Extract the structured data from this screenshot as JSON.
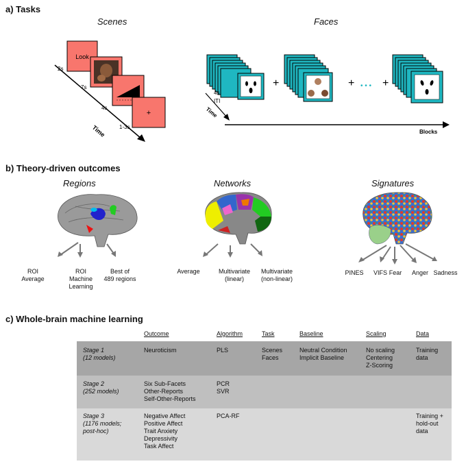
{
  "sections": {
    "a": "a) Tasks",
    "b": "b) Theory-driven outcomes",
    "c": "c) Whole-brain machine learning"
  },
  "tasks": {
    "scenes_title": "Scenes",
    "faces_title": "Faces",
    "look": "Look",
    "plus": "+",
    "scene_times": [
      "2s",
      "7s",
      "4s",
      "1-3s"
    ],
    "time_label": "Time",
    "faces_timing_1": "4s",
    "faces_timing_2": "ITI",
    "blocks_label": "Blocks",
    "ellipsis": "• • •"
  },
  "theory": {
    "regions_title": "Regions",
    "networks_title": "Networks",
    "signatures_title": "Signatures",
    "regions_items": [
      "ROI\nAverage",
      "ROI\nMachine\nLearning",
      "Best of\n489 regions"
    ],
    "networks_items": [
      "Average",
      "Multivariate\n(linear)",
      "Multivariate\n(non-linear)"
    ],
    "signature_items": [
      "PINES",
      "VIFS",
      "Fear",
      "Anger",
      "Sadness"
    ]
  },
  "ml_table": {
    "headers": [
      "Outcome",
      "Algorithm",
      "Task",
      "Baseline",
      "Scaling",
      "Data"
    ],
    "rows": [
      {
        "stage": "Stage 1\n(12 models)",
        "outcome": "Neuroticism",
        "algorithm": "PLS",
        "task": "Scenes\nFaces",
        "baseline": "Neutral Condition\nImplicit Baseline",
        "scaling": "No scaling\nCentering\nZ-Scoring",
        "data": "Training\ndata"
      },
      {
        "stage": "Stage 2\n(252 models)",
        "outcome": "Six Sub-Facets\nOther-Reports\nSelf-Other-Reports",
        "algorithm": "PCR\nSVR",
        "task": "",
        "baseline": "",
        "scaling": "",
        "data": ""
      },
      {
        "stage": "Stage 3\n(1176 models;\npost-hoc)",
        "outcome": "Negative Affect\nPositive Affect\nTrait Anxiety\nDepressivity\nTask Affect",
        "algorithm": "PCA-RF",
        "task": "",
        "baseline": "",
        "scaling": "",
        "data": "Training +\nhold-out\ndata"
      }
    ]
  },
  "colors": {
    "salmon": "#f8766d",
    "teal": "#1fb7c1",
    "row1": "#a6a6a6",
    "row2": "#bfbfbf",
    "row3": "#d9d9d9"
  }
}
